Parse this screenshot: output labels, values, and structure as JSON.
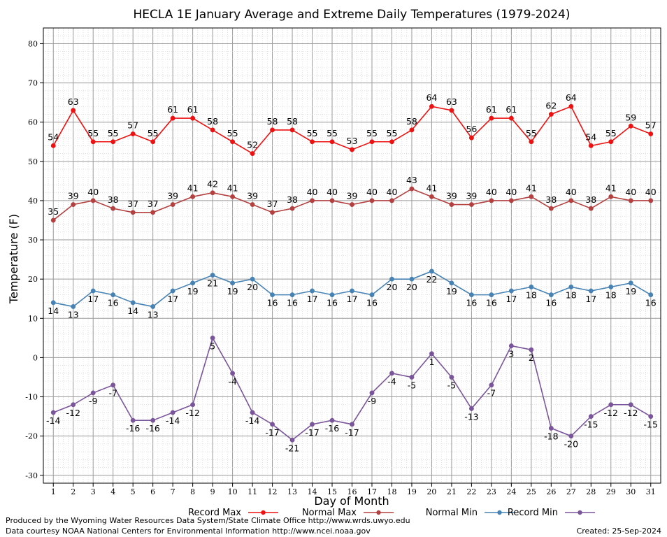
{
  "chart_data": {
    "type": "line",
    "title": "HECLA 1E January Average and Extreme Daily Temperatures (1979-2024)",
    "xlabel": "Day of Month",
    "ylabel": "Temperature (F)",
    "x": [
      1,
      2,
      3,
      4,
      5,
      6,
      7,
      8,
      9,
      10,
      11,
      12,
      13,
      14,
      15,
      16,
      17,
      18,
      19,
      20,
      21,
      22,
      23,
      24,
      25,
      26,
      27,
      28,
      29,
      30,
      31
    ],
    "xlim": [
      0.5,
      31.5
    ],
    "ylim": [
      -32,
      84
    ],
    "yticks": [
      -30,
      -20,
      -10,
      0,
      10,
      20,
      30,
      40,
      50,
      60,
      70,
      80
    ],
    "grid": true,
    "legend_position": "bottom",
    "series": [
      {
        "name": "Record Max",
        "color": "#ee1111",
        "label_pos": "above",
        "values": [
          54,
          63,
          55,
          55,
          57,
          55,
          61,
          61,
          58,
          55,
          52,
          58,
          58,
          55,
          55,
          53,
          55,
          55,
          58,
          64,
          63,
          56,
          61,
          61,
          55,
          62,
          64,
          54,
          55,
          59,
          57
        ]
      },
      {
        "name": "Normal Max",
        "color": "#b44040",
        "label_pos": "above",
        "values": [
          35,
          39,
          40,
          38,
          37,
          37,
          39,
          41,
          42,
          41,
          39,
          37,
          38,
          40,
          40,
          39,
          40,
          40,
          43,
          41,
          39,
          39,
          40,
          40,
          41,
          38,
          40,
          38,
          41,
          40,
          40
        ]
      },
      {
        "name": "Normal Min",
        "color": "#4682b4",
        "label_pos": "below",
        "values": [
          14,
          13,
          17,
          16,
          14,
          13,
          17,
          19,
          21,
          19,
          20,
          16,
          16,
          17,
          16,
          17,
          16,
          20,
          20,
          22,
          19,
          16,
          16,
          17,
          18,
          16,
          18,
          17,
          18,
          19,
          16
        ]
      },
      {
        "name": "Record Min",
        "color": "#7b559b",
        "label_pos": "below",
        "values": [
          -14,
          -12,
          -9,
          -7,
          -16,
          -16,
          -14,
          -12,
          5,
          -4,
          -14,
          -17,
          -21,
          -17,
          -16,
          -17,
          -9,
          -4,
          -5,
          1,
          -5,
          -13,
          -7,
          3,
          2,
          -18,
          -20,
          -15,
          -12,
          -12,
          -15
        ]
      }
    ]
  },
  "credits": {
    "line1": "Produced by the Wyoming Water Resources Data System/State Climate Office http://www.wrds.uwyo.edu",
    "line2": "Data courtesy NOAA National Centers for Environmental Information http://www.ncei.noaa.gov",
    "created": "Created:  25-Sep-2024"
  }
}
